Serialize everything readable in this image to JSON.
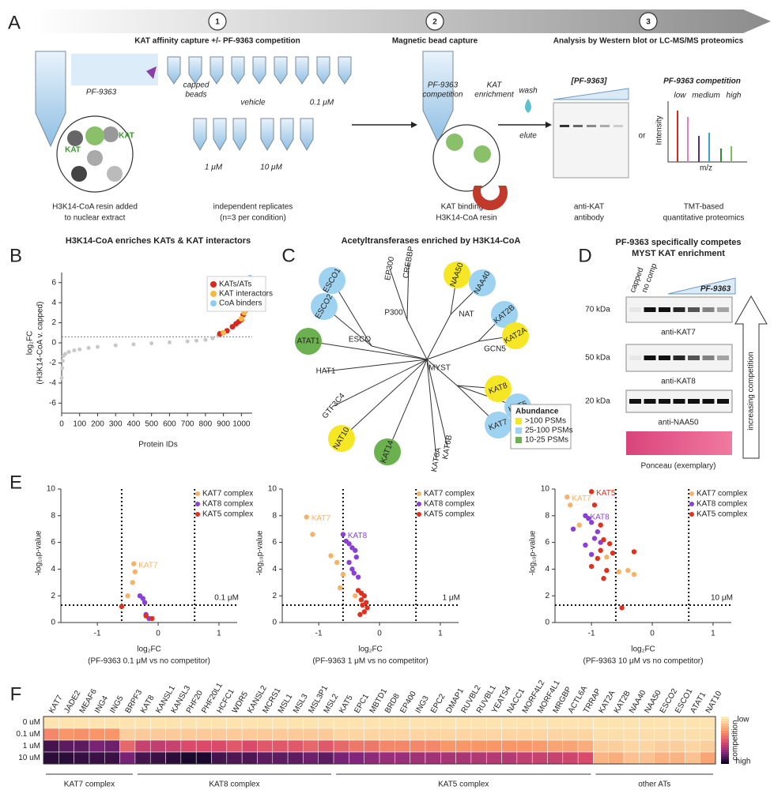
{
  "panels": {
    "A": {
      "letter": "A",
      "steps": [
        {
          "number": "1",
          "label": "KAT affinity capture +/- PF-9363 competition"
        },
        {
          "number": "2",
          "label": "Magnetic bead capture"
        },
        {
          "number": "3",
          "label": "Analysis by Western blot or LC-MS/MS proteomics"
        }
      ],
      "compound": "PF-9363",
      "resin_labels": [
        "KAT",
        "KAT"
      ],
      "tube_groups": [
        [
          "capped",
          "beads"
        ],
        [
          "vehicle"
        ],
        [
          "0.1 μM"
        ],
        [
          "1 μM"
        ],
        [
          "10 μM"
        ]
      ],
      "captions": [
        [
          "H3K14-CoA resin added",
          "to nuclear extract"
        ],
        [
          "independent replicates",
          "(n=3 per condition)"
        ],
        [
          "KAT binding to",
          "H3K14-CoA resin"
        ],
        [
          "anti-KAT",
          "antibody"
        ],
        [
          "TMT-based",
          "quantitative proteomics"
        ]
      ],
      "bead_labels": [
        [
          "PF-9363",
          "competition"
        ],
        [
          "KAT",
          "enrichment"
        ]
      ],
      "wash": "wash",
      "elute": "elute",
      "blot_label": "[PF-9363]",
      "or": "or",
      "ms": {
        "title": "PF-9363 competition",
        "levels": [
          "low",
          "medium",
          "high"
        ],
        "ylabel": "Intensity",
        "xlabel": "m/z"
      }
    },
    "B": {
      "letter": "B",
      "chart": {
        "type": "scatter",
        "title": "H3K14-CoA enriches KATs & KAT interactors",
        "ylabel": [
          "log₂FC",
          "(H3K14-CoA v. capped)"
        ],
        "xlabel": "Protein IDs",
        "xlim": [
          0,
          1060
        ],
        "xticks": [
          0,
          100,
          200,
          300,
          400,
          500,
          600,
          700,
          800,
          900,
          1000
        ],
        "ylim": [
          -7,
          7
        ],
        "yticks": [
          -6,
          -4,
          -2,
          0,
          2,
          4,
          6
        ],
        "threshold": 0.6,
        "legend": "top-right",
        "background": {
          "color": "#c8c8c8",
          "x": [
            0,
            3,
            6,
            10,
            20,
            40,
            70,
            100,
            150,
            200,
            300,
            400,
            500,
            600,
            700,
            750,
            800,
            840,
            870
          ],
          "y": [
            -3.5,
            -2.5,
            -1.8,
            -1.3,
            -1.1,
            -0.9,
            -0.75,
            -0.65,
            -0.5,
            -0.4,
            -0.25,
            -0.15,
            -0.05,
            0.05,
            0.15,
            0.22,
            0.3,
            0.45,
            0.7
          ]
        },
        "series": [
          {
            "name": "KATs/ATs",
            "color": "#d8281e",
            "x": [
              880,
              920,
              950,
              970,
              985,
              1000,
              1010,
              1020,
              1040
            ],
            "y": [
              0.9,
              1.2,
              1.6,
              1.9,
              2.1,
              2.3,
              2.8,
              3.2,
              4.8
            ]
          },
          {
            "name": "KAT interactors",
            "color": "#f5b942",
            "x": [
              900,
              1000,
              1015,
              1030,
              1035
            ],
            "y": [
              1.0,
              2.4,
              3.0,
              3.5,
              4.0
            ]
          },
          {
            "name": "CoA binders",
            "color": "#8ecdf0",
            "x": [
              1045,
              1048
            ],
            "y": [
              3.9,
              6.5
            ]
          }
        ]
      }
    },
    "C": {
      "letter": "C",
      "title": "Acetyltransferases enriched by H3K14-CoA",
      "center": "MYST",
      "hubs": [
        {
          "label": "P300"
        },
        {
          "label": "NAT"
        },
        {
          "label": "GCN5"
        },
        {
          "label": "ESCO"
        },
        {
          "label": "MYST"
        }
      ],
      "leaves": [
        {
          "label": "ESCO1",
          "hub": "ESCO",
          "abundance": "25-100 PSMs"
        },
        {
          "label": "ESCO2",
          "hub": "ESCO",
          "abundance": "25-100 PSMs"
        },
        {
          "label": "CREBBP",
          "hub": "P300",
          "abundance": null
        },
        {
          "label": "EP300",
          "hub": "P300",
          "abundance": null
        },
        {
          "label": "NAA50",
          "hub": "NAT",
          "abundance": ">100 PSMs"
        },
        {
          "label": "NAA40",
          "hub": "NAT",
          "abundance": "25-100 PSMs"
        },
        {
          "label": "KAT2B",
          "hub": "GCN5",
          "abundance": "25-100 PSMs"
        },
        {
          "label": "KAT2A",
          "hub": "GCN5",
          "abundance": ">100 PSMs"
        },
        {
          "label": "ATAT1",
          "hub": null,
          "abundance": "10-25 PSMs"
        },
        {
          "label": "HAT1",
          "hub": null,
          "abundance": null
        },
        {
          "label": "GTF3C4",
          "hub": null,
          "abundance": null
        },
        {
          "label": "NAT10",
          "hub": null,
          "abundance": ">100 PSMs"
        },
        {
          "label": "KAT14",
          "hub": null,
          "abundance": "10-25 PSMs"
        },
        {
          "label": "KAT6A",
          "hub": null,
          "abundance": null
        },
        {
          "label": "KAT6B",
          "hub": null,
          "abundance": null
        },
        {
          "label": "KAT8",
          "hub": "MYST",
          "abundance": ">100 PSMs"
        },
        {
          "label": "KAT5",
          "hub": "MYST",
          "abundance": "25-100 PSMs"
        },
        {
          "label": "KAT7",
          "hub": "MYST",
          "abundance": "25-100 PSMs"
        }
      ],
      "legend": {
        "title": "Abundance",
        "entries": [
          {
            "label": ">100 PSMs",
            "color": "#f5e626"
          },
          {
            "label": "25-100 PSMs",
            "color": "#9dd2f0"
          },
          {
            "label": "10-25 PSMs",
            "color": "#6cb14f"
          }
        ]
      }
    },
    "D": {
      "letter": "D",
      "title": [
        "PF-9363 specifically competes",
        "MYST KAT enrichment"
      ],
      "lanes": [
        "capped",
        "no comp"
      ],
      "compound": "PF-9363",
      "blots": [
        {
          "size": "70 kDa",
          "antibody": "anti-KAT7"
        },
        {
          "size": "50 kDa",
          "antibody": "anti-KAT8"
        },
        {
          "size": "20 kDa",
          "antibody": "anti-NAA50"
        }
      ],
      "ponceau": "Ponceau (exemplary)",
      "arrow": "increasing competition"
    },
    "E": {
      "letter": "E",
      "charts": [
        {
          "type": "scatter",
          "concentration": "0.1 μM",
          "ylabel": "-log₁₀p-value",
          "xlabel": [
            "log₂FC",
            "(PF-9363 0.1 μM vs no competitor)"
          ],
          "xlim": [
            -1.6,
            1.3
          ],
          "xticks": [
            -1,
            0,
            1
          ],
          "ylim": [
            0,
            10
          ],
          "yticks": [
            0,
            2,
            4,
            6,
            8,
            10
          ],
          "thresholds": {
            "x": [
              -0.6,
              0.6
            ],
            "y": 1.3
          },
          "annotations": [
            "KAT7"
          ],
          "series": [
            {
              "name": "KAT7 complex",
              "color": "#f5b36a",
              "x": [
                -0.4,
                -0.38,
                -0.42,
                -0.5
              ],
              "y": [
                4.4,
                3.8,
                3.0,
                2.0
              ]
            },
            {
              "name": "KAT8 complex",
              "color": "#8b3fd6",
              "x": [
                -0.3,
                -0.25,
                -0.22,
                -0.2,
                -0.15
              ],
              "y": [
                2.0,
                1.8,
                1.5,
                0.6,
                0.3
              ]
            },
            {
              "name": "KAT5 complex",
              "color": "#e0301e",
              "x": [
                -0.6,
                -0.2,
                -0.1
              ],
              "y": [
                1.2,
                0.5,
                0.3
              ]
            }
          ]
        },
        {
          "type": "scatter",
          "concentration": "1 μM",
          "ylabel": "-log₁₀p-value",
          "xlabel": [
            "log₂FC",
            "(PF-9363 1 μM vs no competitor)"
          ],
          "xlim": [
            -1.6,
            1.3
          ],
          "xticks": [
            -1,
            0,
            1
          ],
          "ylim": [
            0,
            10
          ],
          "yticks": [
            0,
            2,
            4,
            6,
            8,
            10
          ],
          "thresholds": {
            "x": [
              -0.6,
              0.6
            ],
            "y": 1.3
          },
          "annotations": [
            "KAT7",
            "KAT8"
          ],
          "series": [
            {
              "name": "KAT7 complex",
              "color": "#f5b36a",
              "x": [
                -1.2,
                -1.1,
                -0.8,
                -0.7,
                -0.6,
                -0.65,
                -0.4
              ],
              "y": [
                7.9,
                6.6,
                5.0,
                4.5,
                3.6,
                2.6,
                2.0
              ]
            },
            {
              "name": "KAT8 complex",
              "color": "#8b3fd6",
              "x": [
                -0.6,
                -0.55,
                -0.5,
                -0.45,
                -0.4,
                -0.38,
                -0.5,
                -0.45,
                -0.42,
                -0.35
              ],
              "y": [
                6.6,
                6.1,
                5.9,
                5.6,
                5.4,
                4.9,
                4.5,
                4.0,
                3.7,
                3.4
              ]
            },
            {
              "name": "KAT5 complex",
              "color": "#e0301e",
              "x": [
                -0.35,
                -0.3,
                -0.25,
                -0.3,
                -0.22,
                -0.28,
                -0.2,
                -0.25,
                -0.32
              ],
              "y": [
                2.4,
                2.2,
                2.0,
                1.7,
                1.5,
                1.3,
                1.1,
                0.8,
                0.6
              ]
            }
          ]
        },
        {
          "type": "scatter",
          "concentration": "10 μM",
          "ylabel": "-log₁₀p-value",
          "xlabel": [
            "log₂FC",
            "(PF-9363 10 μM vs no competitor)"
          ],
          "xlim": [
            -1.6,
            1.3
          ],
          "xticks": [
            -1,
            0,
            1
          ],
          "ylim": [
            0,
            10
          ],
          "yticks": [
            0,
            2,
            4,
            6,
            8,
            10
          ],
          "thresholds": {
            "x": [
              -0.6,
              0.6
            ],
            "y": 1.3
          },
          "annotations": [
            "KAT7",
            "KAT8",
            "KAT5"
          ],
          "series": [
            {
              "name": "KAT7 complex",
              "color": "#f5b36a",
              "x": [
                -1.4,
                -1.35,
                -1.2,
                -0.75,
                -0.55,
                -0.4,
                -0.3
              ],
              "y": [
                9.4,
                8.8,
                7.3,
                4.9,
                3.8,
                3.9,
                3.6
              ]
            },
            {
              "name": "KAT8 complex",
              "color": "#8b3fd6",
              "x": [
                -1.3,
                -1.1,
                -1.05,
                -1.0,
                -0.9,
                -0.95,
                -0.85,
                -1.1,
                -1.0
              ],
              "y": [
                7.0,
                8.0,
                7.8,
                7.5,
                6.8,
                6.3,
                6.0,
                5.8,
                5.1
              ]
            },
            {
              "name": "KAT5 complex",
              "color": "#e0301e",
              "x": [
                -1.0,
                -0.95,
                -0.85,
                -0.8,
                -0.7,
                -0.65,
                -0.9,
                -1.0,
                -0.75,
                -0.8,
                -0.85,
                -0.3,
                -0.5
              ],
              "y": [
                9.8,
                8.8,
                7.3,
                6.2,
                5.9,
                5.2,
                4.8,
                4.2,
                3.9,
                3.3,
                5.4,
                5.3,
                1.1
              ]
            }
          ]
        }
      ]
    },
    "F": {
      "letter": "F",
      "chart": {
        "type": "heatmap",
        "clim": [
          0,
          1
        ],
        "colorbar": {
          "low": "low",
          "high": "high",
          "label": "competition"
        },
        "categories": [
          "KAT7",
          "JADE2",
          "MEAF6",
          "ING4",
          "ING5",
          "BRPF3",
          "KAT8",
          "KANSL1",
          "KANSL3",
          "PHF20",
          "PHF20L1",
          "HCFC1",
          "WDR5",
          "KANSL2",
          "MCRS1",
          "MSL1",
          "MSL3",
          "MSL3P1",
          "MSL2",
          "KAT5",
          "EPC1",
          "MBTD1",
          "BRD8",
          "EP400",
          "ING3",
          "EPC2",
          "DMAP1",
          "RUVBL2",
          "RUVBL1",
          "YEATS4",
          "NACC1",
          "MORF4L2",
          "MORF4L1",
          "MRGBP",
          "ACTL6A",
          "TRRAP",
          "KAT2A",
          "KAT2B",
          "NAA40",
          "NAA50",
          "ESCO2",
          "ESCO1",
          "ATAT1",
          "NAT10"
        ],
        "rows": [
          "0 uM",
          "0.1 uM",
          "1 uM",
          "10 uM"
        ],
        "values": [
          [
            0.03,
            0.03,
            0.03,
            0.03,
            0.03,
            0.03,
            0.03,
            0.03,
            0.03,
            0.03,
            0.03,
            0.03,
            0.03,
            0.03,
            0.03,
            0.03,
            0.03,
            0.03,
            0.03,
            0.03,
            0.03,
            0.03,
            0.03,
            0.03,
            0.03,
            0.03,
            0.03,
            0.03,
            0.03,
            0.03,
            0.03,
            0.03,
            0.03,
            0.03,
            0.03,
            0.03,
            0.03,
            0.03,
            0.03,
            0.03,
            0.03,
            0.03,
            0.03,
            0.03
          ],
          [
            0.35,
            0.3,
            0.32,
            0.3,
            0.3,
            0.1,
            0.12,
            0.12,
            0.12,
            0.12,
            0.12,
            0.12,
            0.12,
            0.12,
            0.12,
            0.12,
            0.12,
            0.12,
            0.12,
            0.08,
            0.08,
            0.08,
            0.08,
            0.08,
            0.08,
            0.08,
            0.08,
            0.08,
            0.08,
            0.08,
            0.08,
            0.08,
            0.08,
            0.08,
            0.08,
            0.08,
            0.05,
            0.05,
            0.05,
            0.05,
            0.05,
            0.05,
            0.05,
            0.05
          ],
          [
            0.9,
            0.85,
            0.85,
            0.8,
            0.82,
            0.45,
            0.6,
            0.62,
            0.6,
            0.55,
            0.55,
            0.55,
            0.5,
            0.55,
            0.5,
            0.5,
            0.5,
            0.45,
            0.5,
            0.45,
            0.4,
            0.4,
            0.35,
            0.35,
            0.35,
            0.35,
            0.3,
            0.3,
            0.3,
            0.3,
            0.3,
            0.3,
            0.28,
            0.25,
            0.25,
            0.22,
            0.1,
            0.1,
            0.08,
            0.08,
            0.1,
            0.1,
            0.08,
            0.1
          ],
          [
            0.95,
            0.95,
            0.93,
            0.92,
            0.92,
            0.8,
            0.9,
            0.92,
            0.95,
            0.98,
            0.98,
            0.9,
            0.88,
            0.88,
            0.85,
            0.85,
            0.85,
            0.82,
            0.85,
            0.8,
            0.78,
            0.75,
            0.72,
            0.72,
            0.7,
            0.7,
            0.68,
            0.68,
            0.66,
            0.65,
            0.65,
            0.62,
            0.6,
            0.6,
            0.58,
            0.55,
            0.2,
            0.22,
            0.15,
            0.15,
            0.2,
            0.2,
            0.15,
            0.25
          ]
        ],
        "groups": [
          {
            "name": "KAT7 complex",
            "from": "KAT7",
            "to": "BRPF3"
          },
          {
            "name": "KAT8 complex",
            "from": "KAT8",
            "to": "MSL2"
          },
          {
            "name": "KAT5 complex",
            "from": "KAT5",
            "to": "TRRAP"
          },
          {
            "name": "other ATs",
            "from": "KAT2A",
            "to": "NAT10"
          }
        ]
      }
    }
  }
}
